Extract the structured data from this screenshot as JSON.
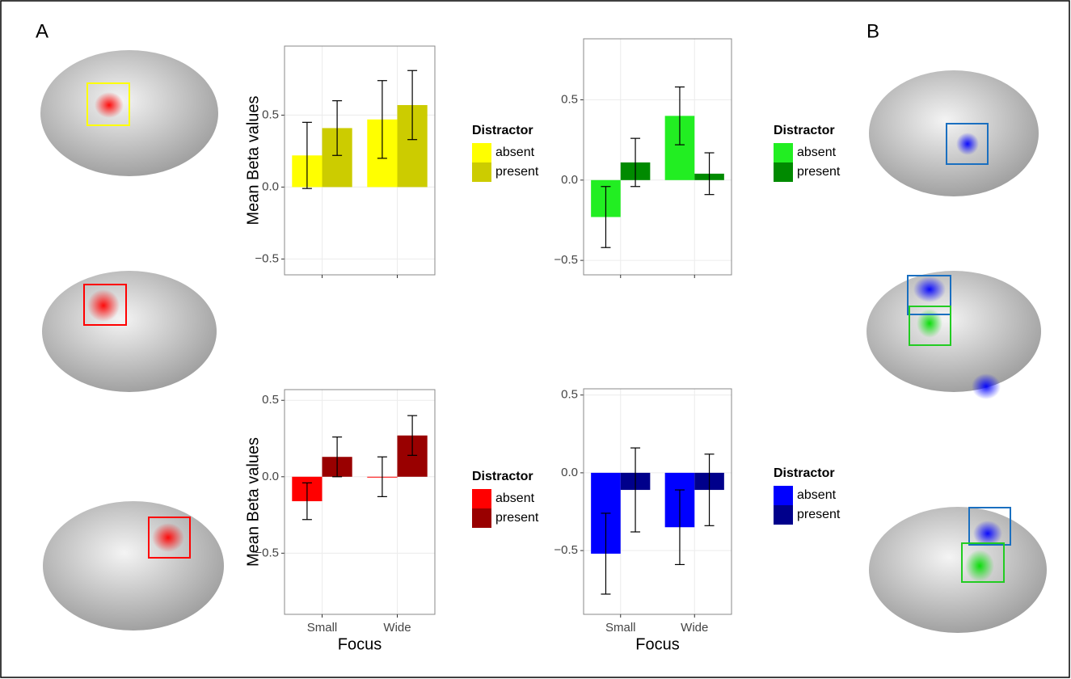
{
  "panels": [
    "A",
    "B"
  ],
  "chart_data": [
    {
      "type": "bar",
      "y_label": "Mean Beta values",
      "legend_title": "Distractor",
      "categories": [
        null,
        null
      ],
      "series": [
        {
          "name": "absent",
          "color": "#ffff00",
          "values": [
            0.22,
            0.47
          ],
          "errors": [
            0.23,
            0.27
          ]
        },
        {
          "name": "present",
          "color": "#cccc00",
          "values": [
            0.41,
            0.57
          ],
          "errors": [
            0.19,
            0.24
          ]
        }
      ],
      "ylim": [
        -0.61,
        0.98
      ],
      "yticks": [
        {
          "value": -0.5,
          "label": "−0.5"
        },
        {
          "value": 0,
          "label": "0.0"
        },
        {
          "value": 0.5,
          "label": "0.5"
        }
      ],
      "grid": true
    },
    {
      "type": "bar",
      "legend_title": "Distractor",
      "categories": [
        null,
        null
      ],
      "series": [
        {
          "name": "absent",
          "color": "#22ee22",
          "values": [
            -0.23,
            0.4
          ],
          "errors": [
            0.19,
            0.18
          ]
        },
        {
          "name": "present",
          "color": "#008a00",
          "values": [
            0.11,
            0.04
          ],
          "errors": [
            0.15,
            0.13
          ]
        }
      ],
      "ylim": [
        -0.59,
        0.88
      ],
      "yticks": [
        {
          "value": -0.5,
          "label": "−0.5"
        },
        {
          "value": 0,
          "label": "0.0"
        },
        {
          "value": 0.5,
          "label": "0.5"
        }
      ],
      "grid": true
    },
    {
      "type": "bar",
      "y_label": "Mean Beta values",
      "x_label": "Focus",
      "legend_title": "Distractor",
      "categories": [
        "Small",
        "Wide"
      ],
      "series": [
        {
          "name": "absent",
          "color": "#ff0000",
          "values": [
            -0.16,
            0.0
          ],
          "errors": [
            0.12,
            0.13
          ]
        },
        {
          "name": "present",
          "color": "#990000",
          "values": [
            0.13,
            0.27
          ],
          "errors": [
            0.13,
            0.13
          ]
        }
      ],
      "ylim": [
        -0.9,
        0.57
      ],
      "yticks": [
        {
          "value": -0.5,
          "label": "−0.5"
        },
        {
          "value": 0,
          "label": "0.0"
        },
        {
          "value": 0.5,
          "label": "0.5"
        }
      ],
      "grid": true
    },
    {
      "type": "bar",
      "x_label": "Focus",
      "legend_title": "Distractor",
      "categories": [
        "Small",
        "Wide"
      ],
      "series": [
        {
          "name": "absent",
          "color": "#0000ff",
          "values": [
            -0.52,
            -0.35
          ],
          "errors": [
            0.26,
            0.24
          ]
        },
        {
          "name": "present",
          "color": "#00008b",
          "values": [
            -0.11,
            -0.11
          ],
          "errors": [
            0.27,
            0.23
          ]
        }
      ],
      "ylim": [
        -0.91,
        0.54
      ],
      "yticks": [
        {
          "value": -0.5,
          "label": "−0.5"
        },
        {
          "value": 0,
          "label": "0.0"
        },
        {
          "value": 0.5,
          "label": "0.5"
        }
      ],
      "grid": true
    }
  ]
}
